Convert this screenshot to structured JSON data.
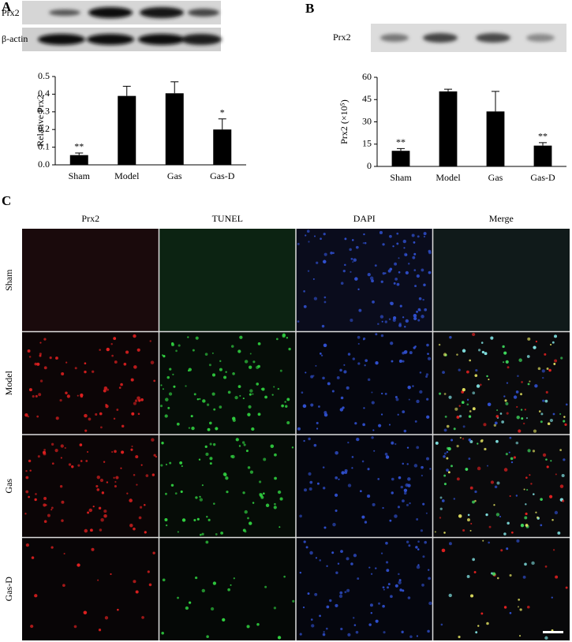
{
  "chart_data": [
    {
      "type": "bar",
      "ylabel": "Relative  Prx2",
      "categories": [
        "Sham",
        "Model",
        "Gas",
        "Gas-D"
      ],
      "values": [
        0.055,
        0.39,
        0.405,
        0.2
      ],
      "errors": [
        0.012,
        0.055,
        0.065,
        0.06
      ],
      "color": "#000000",
      "ylim": [
        0,
        0.5
      ],
      "yticks": [
        {
          "value": 0,
          "label": "0.0"
        },
        0.1,
        0.2,
        0.3,
        0.4,
        0.5
      ],
      "annotations": [
        {
          "x": "Sham",
          "text": "**"
        },
        {
          "x": "Gas-D",
          "text": "*"
        }
      ]
    },
    {
      "type": "bar",
      "ylabel": "Prx2 (×10⁵)",
      "categories": [
        "Sham",
        "Model",
        "Gas",
        "Gas-D"
      ],
      "values": [
        10.5,
        50.5,
        37,
        14
      ],
      "errors": [
        1.5,
        1.5,
        13.5,
        2
      ],
      "color": "#000000",
      "ylim": [
        0,
        60
      ],
      "yticks": [
        0,
        15,
        30,
        45,
        60
      ],
      "annotations": [
        {
          "x": "Sham",
          "text": "**"
        },
        {
          "x": "Gas-D",
          "text": "**"
        }
      ]
    }
  ],
  "panel_labels": [
    "A",
    "B",
    "C"
  ],
  "blot_a": {
    "labels": [
      "Prx2",
      "β-actin"
    ]
  },
  "blot_b": {
    "label": "Prx2"
  },
  "microscopy": {
    "columns": [
      "Prx2",
      "TUNEL",
      "DAPI",
      "Merge"
    ],
    "rows": [
      "Sham",
      "Model",
      "Gas",
      "Gas-D"
    ]
  }
}
